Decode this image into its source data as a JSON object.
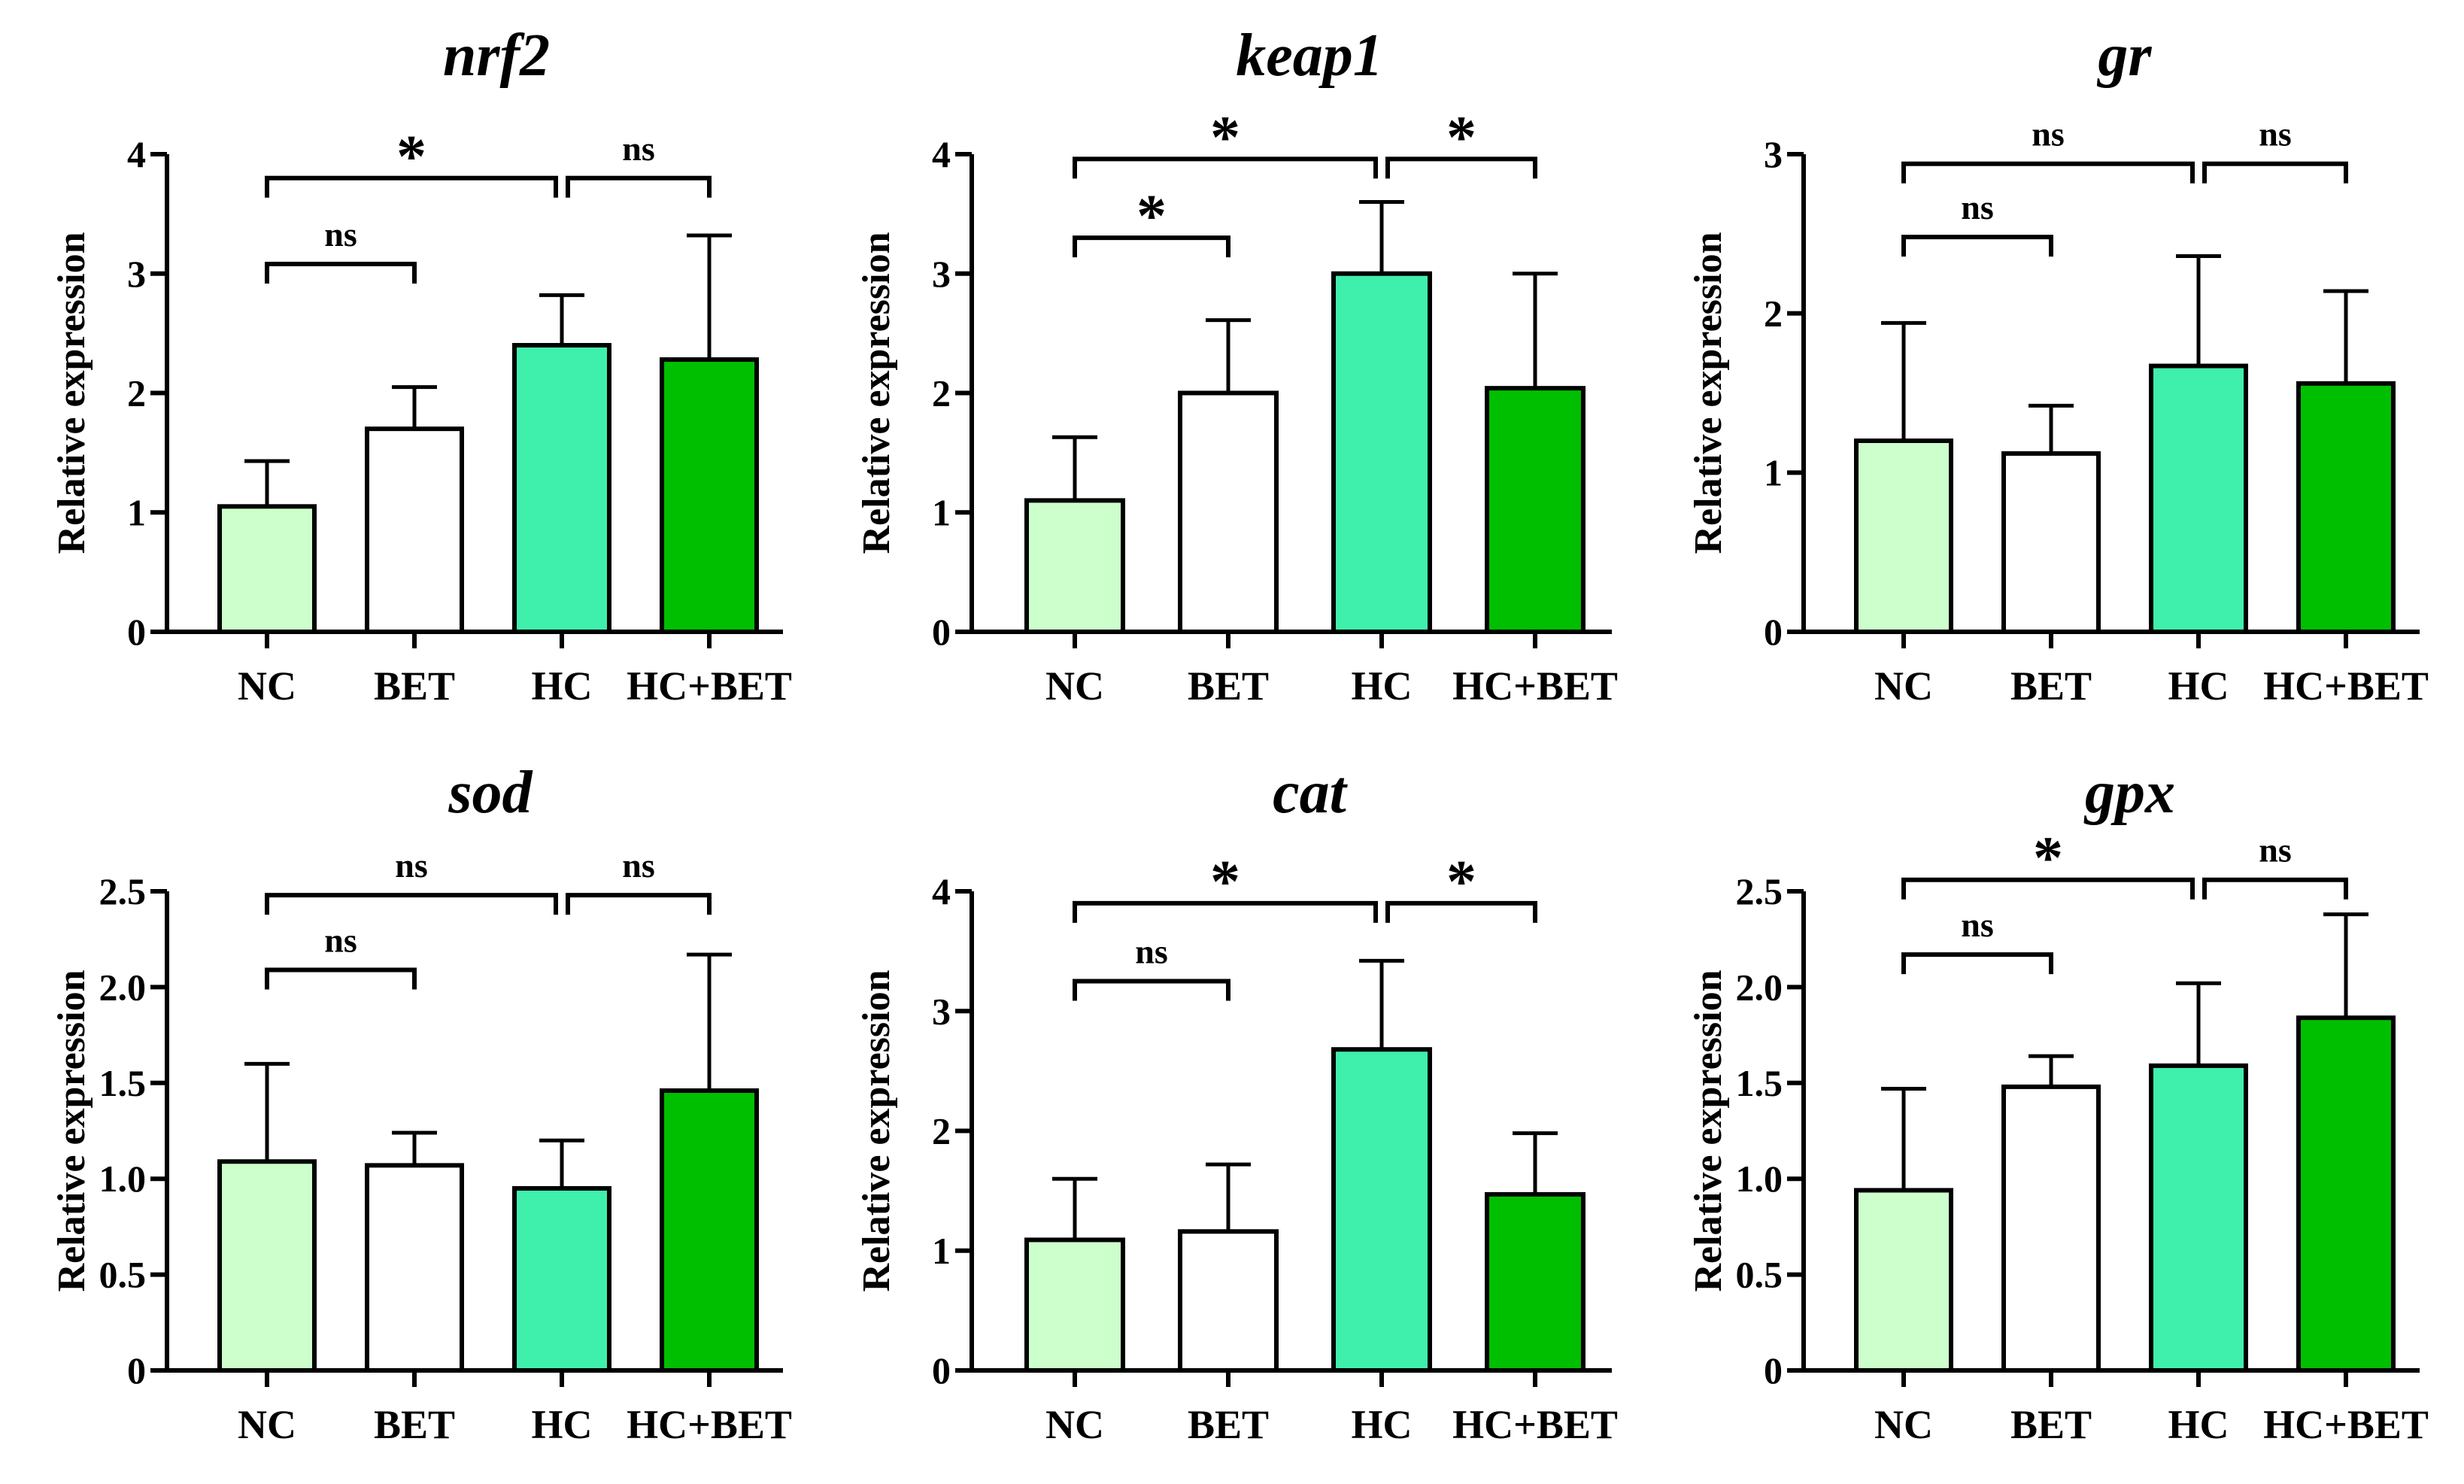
{
  "colors": {
    "NC": "#ccffcc",
    "BET": "#ffffff",
    "HC": "#3fefac",
    "HC+BET": "#00bf00",
    "stroke": "#000000"
  },
  "chart_data": [
    {
      "type": "bar",
      "title": "nrf2",
      "ylabel": "Relative expression",
      "categories": [
        "NC",
        "BET",
        "HC",
        "HC+BET"
      ],
      "values": [
        1.05,
        1.7,
        2.4,
        2.28
      ],
      "errors": [
        0.38,
        0.35,
        0.42,
        1.04
      ],
      "ylim": [
        0,
        4
      ],
      "yticks": [
        "0",
        "1",
        "2",
        "3",
        "4"
      ],
      "significance": [
        {
          "from": 0,
          "to": 2,
          "label": "*",
          "level": 3.8
        },
        {
          "from": 2,
          "to": 3,
          "label": "ns",
          "level": 3.8
        },
        {
          "from": 0,
          "to": 1,
          "label": "ns",
          "level": 3.08
        }
      ]
    },
    {
      "type": "bar",
      "title": "keap1",
      "ylabel": "Relative expression",
      "categories": [
        "NC",
        "BET",
        "HC",
        "HC+BET"
      ],
      "values": [
        1.1,
        2.0,
        3.0,
        2.04
      ],
      "errors": [
        0.53,
        0.61,
        0.6,
        0.96
      ],
      "ylim": [
        0,
        4
      ],
      "yticks": [
        "0",
        "1",
        "2",
        "3",
        "4"
      ],
      "significance": [
        {
          "from": 0,
          "to": 2,
          "label": "*",
          "level": 3.96
        },
        {
          "from": 2,
          "to": 3,
          "label": "*",
          "level": 3.96
        },
        {
          "from": 0,
          "to": 1,
          "label": "*",
          "level": 3.3
        }
      ]
    },
    {
      "type": "bar",
      "title": "gr",
      "ylabel": "Relative expression",
      "categories": [
        "NC",
        "BET",
        "HC",
        "HC+BET"
      ],
      "values": [
        1.2,
        1.12,
        1.67,
        1.56
      ],
      "errors": [
        0.74,
        0.3,
        0.69,
        0.58
      ],
      "ylim": [
        0,
        3
      ],
      "yticks": [
        "0",
        "1",
        "2",
        "3"
      ],
      "significance": [
        {
          "from": 0,
          "to": 2,
          "label": "ns",
          "level": 2.94
        },
        {
          "from": 2,
          "to": 3,
          "label": "ns",
          "level": 2.94
        },
        {
          "from": 0,
          "to": 1,
          "label": "ns",
          "level": 2.48
        }
      ]
    },
    {
      "type": "bar",
      "title": "sod",
      "ylabel": "Relative expression",
      "categories": [
        "NC",
        "BET",
        "HC",
        "HC+BET"
      ],
      "values": [
        1.09,
        1.07,
        0.95,
        1.46
      ],
      "errors": [
        0.51,
        0.17,
        0.25,
        0.71
      ],
      "ylim": [
        0,
        2.5
      ],
      "yticks": [
        "0",
        "0.5",
        "1.0",
        "1.5",
        "2.0",
        "2.5"
      ],
      "significance": [
        {
          "from": 0,
          "to": 2,
          "label": "ns",
          "level": 2.48
        },
        {
          "from": 2,
          "to": 3,
          "label": "ns",
          "level": 2.48
        },
        {
          "from": 0,
          "to": 1,
          "label": "ns",
          "level": 2.09
        }
      ]
    },
    {
      "type": "bar",
      "title": "cat",
      "ylabel": "Relative expression",
      "categories": [
        "NC",
        "BET",
        "HC",
        "HC+BET"
      ],
      "values": [
        1.09,
        1.16,
        2.68,
        1.47
      ],
      "errors": [
        0.51,
        0.56,
        0.74,
        0.51
      ],
      "ylim": [
        0,
        4
      ],
      "yticks": [
        "0",
        "1",
        "2",
        "3",
        "4"
      ],
      "significance": [
        {
          "from": 0,
          "to": 2,
          "label": "*",
          "level": 3.9
        },
        {
          "from": 2,
          "to": 3,
          "label": "*",
          "level": 3.9
        },
        {
          "from": 0,
          "to": 1,
          "label": "ns",
          "level": 3.25
        }
      ]
    },
    {
      "type": "bar",
      "title": "gpx",
      "ylabel": "Relative expression",
      "categories": [
        "NC",
        "BET",
        "HC",
        "HC+BET"
      ],
      "values": [
        0.94,
        1.48,
        1.59,
        1.84
      ],
      "errors": [
        0.53,
        0.16,
        0.43,
        0.54
      ],
      "ylim": [
        0,
        2.5
      ],
      "yticks": [
        "0",
        "0.5",
        "1.0",
        "1.5",
        "2.0",
        "2.5"
      ],
      "significance": [
        {
          "from": 0,
          "to": 2,
          "label": "*",
          "level": 2.56
        },
        {
          "from": 2,
          "to": 3,
          "label": "ns",
          "level": 2.56
        },
        {
          "from": 0,
          "to": 1,
          "label": "ns",
          "level": 2.17
        }
      ]
    }
  ]
}
